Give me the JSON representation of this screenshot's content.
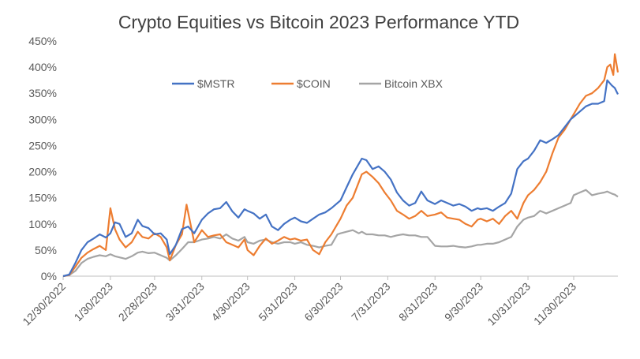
{
  "chart_data": {
    "type": "line",
    "title": "Crypto Equities vs Bitcoin 2023 Performance YTD",
    "xlabel": "",
    "ylabel": "",
    "ylim": [
      0,
      450
    ],
    "yticks": [
      0,
      50,
      100,
      150,
      200,
      250,
      300,
      350,
      400,
      450
    ],
    "ytick_labels": [
      "0%",
      "50%",
      "100%",
      "150%",
      "200%",
      "250%",
      "300%",
      "350%",
      "400%",
      "450%"
    ],
    "xlim": [
      0,
      364
    ],
    "xticks": [
      0,
      31,
      60,
      91,
      121,
      152,
      182,
      213,
      244,
      274,
      305,
      335
    ],
    "xtick_labels": [
      "12/30/2022",
      "1/30/2023",
      "2/28/2023",
      "3/31/2023",
      "4/30/2023",
      "5/31/2023",
      "6/30/2023",
      "7/31/2023",
      "8/31/2023",
      "9/30/2023",
      "10/31/2023",
      "11/30/2023"
    ],
    "legend_position": "top-center",
    "series": [
      {
        "name": "$MSTR",
        "color": "#4472C4",
        "x": [
          0,
          4,
          8,
          12,
          16,
          20,
          24,
          28,
          31,
          34,
          37,
          41,
          45,
          49,
          52,
          56,
          60,
          64,
          68,
          70,
          74,
          78,
          82,
          86,
          91,
          95,
          99,
          103,
          107,
          111,
          115,
          119,
          121,
          125,
          129,
          133,
          137,
          141,
          145,
          149,
          152,
          156,
          160,
          164,
          168,
          172,
          176,
          180,
          182,
          186,
          190,
          194,
          196,
          199,
          203,
          207,
          211,
          215,
          219,
          223,
          227,
          231,
          235,
          239,
          244,
          248,
          252,
          256,
          260,
          264,
          268,
          272,
          274,
          278,
          282,
          286,
          290,
          294,
          298,
          302,
          305,
          309,
          313,
          317,
          321,
          325,
          329,
          333,
          335,
          339,
          343,
          347,
          351,
          355,
          357,
          360,
          362,
          364
        ],
        "values": [
          0,
          3,
          25,
          50,
          65,
          72,
          80,
          74,
          82,
          103,
          100,
          75,
          82,
          108,
          96,
          92,
          80,
          82,
          70,
          42,
          60,
          90,
          95,
          82,
          108,
          120,
          128,
          130,
          142,
          124,
          112,
          128,
          125,
          120,
          110,
          118,
          95,
          88,
          100,
          108,
          112,
          105,
          102,
          110,
          118,
          122,
          130,
          140,
          145,
          170,
          195,
          215,
          225,
          222,
          205,
          210,
          200,
          185,
          160,
          145,
          135,
          140,
          162,
          145,
          138,
          145,
          140,
          135,
          138,
          133,
          125,
          130,
          128,
          130,
          125,
          133,
          140,
          158,
          205,
          220,
          225,
          240,
          260,
          255,
          262,
          270,
          285,
          300,
          305,
          315,
          325,
          330,
          330,
          335,
          375,
          365,
          360,
          348
        ]
      },
      {
        "name": "$COIN",
        "color": "#ED7D31",
        "x": [
          0,
          4,
          8,
          12,
          16,
          20,
          24,
          28,
          31,
          34,
          37,
          41,
          45,
          49,
          52,
          56,
          60,
          64,
          68,
          70,
          74,
          78,
          81,
          86,
          91,
          95,
          99,
          103,
          107,
          111,
          115,
          119,
          121,
          125,
          129,
          133,
          137,
          141,
          145,
          149,
          152,
          156,
          160,
          164,
          168,
          172,
          176,
          180,
          182,
          186,
          190,
          194,
          196,
          199,
          203,
          207,
          211,
          215,
          219,
          223,
          227,
          231,
          235,
          239,
          244,
          248,
          252,
          256,
          260,
          264,
          268,
          272,
          274,
          278,
          282,
          286,
          290,
          294,
          298,
          302,
          305,
          309,
          313,
          317,
          321,
          325,
          329,
          333,
          335,
          339,
          343,
          347,
          351,
          355,
          357,
          359,
          361,
          362,
          364
        ],
        "values": [
          0,
          2,
          18,
          35,
          45,
          52,
          58,
          50,
          130,
          90,
          70,
          55,
          65,
          85,
          75,
          72,
          82,
          75,
          55,
          30,
          60,
          80,
          137,
          65,
          88,
          75,
          78,
          80,
          65,
          60,
          55,
          70,
          50,
          40,
          58,
          72,
          62,
          68,
          75,
          70,
          72,
          68,
          70,
          50,
          42,
          65,
          80,
          100,
          110,
          135,
          150,
          180,
          195,
          200,
          190,
          178,
          160,
          145,
          125,
          118,
          110,
          115,
          125,
          115,
          118,
          122,
          112,
          110,
          108,
          100,
          95,
          108,
          110,
          105,
          110,
          100,
          115,
          125,
          110,
          140,
          155,
          165,
          180,
          200,
          235,
          265,
          280,
          300,
          310,
          330,
          345,
          350,
          360,
          375,
          400,
          405,
          385,
          425,
          390
        ]
      },
      {
        "name": "Bitcoin XBX",
        "color": "#A5A5A5",
        "x": [
          0,
          4,
          8,
          12,
          16,
          20,
          24,
          28,
          31,
          34,
          37,
          41,
          45,
          49,
          52,
          56,
          60,
          64,
          68,
          70,
          74,
          78,
          82,
          86,
          91,
          95,
          99,
          103,
          107,
          111,
          115,
          119,
          121,
          125,
          129,
          133,
          137,
          141,
          145,
          149,
          152,
          156,
          160,
          164,
          168,
          172,
          176,
          180,
          182,
          186,
          190,
          194,
          196,
          199,
          203,
          207,
          211,
          215,
          219,
          223,
          227,
          231,
          235,
          239,
          244,
          248,
          252,
          256,
          260,
          264,
          268,
          272,
          274,
          278,
          282,
          286,
          290,
          294,
          298,
          302,
          305,
          309,
          313,
          317,
          321,
          325,
          329,
          333,
          335,
          339,
          343,
          347,
          351,
          355,
          357,
          360,
          362,
          364
        ],
        "values": [
          0,
          2,
          10,
          25,
          33,
          37,
          40,
          38,
          42,
          38,
          36,
          33,
          38,
          45,
          47,
          44,
          45,
          40,
          35,
          30,
          40,
          52,
          65,
          65,
          70,
          72,
          75,
          72,
          80,
          72,
          68,
          75,
          65,
          62,
          68,
          70,
          65,
          62,
          65,
          65,
          62,
          65,
          60,
          58,
          55,
          58,
          60,
          80,
          82,
          85,
          88,
          82,
          85,
          80,
          80,
          78,
          78,
          75,
          78,
          80,
          78,
          78,
          75,
          75,
          58,
          57,
          57,
          58,
          56,
          55,
          57,
          60,
          60,
          62,
          62,
          65,
          70,
          75,
          95,
          108,
          112,
          115,
          125,
          120,
          125,
          130,
          135,
          140,
          155,
          160,
          165,
          155,
          158,
          160,
          162,
          158,
          156,
          152
        ]
      }
    ]
  }
}
